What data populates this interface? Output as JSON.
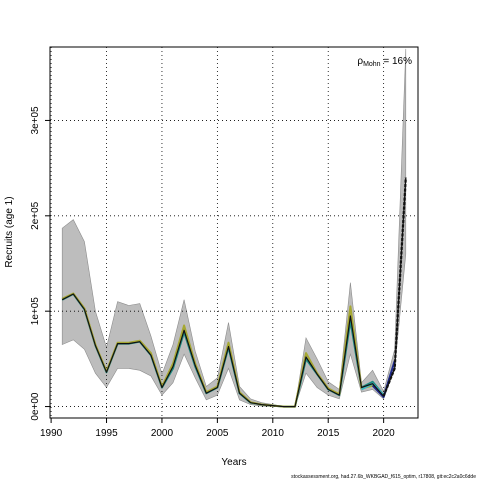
{
  "chart_data": {
    "type": "line",
    "xlabel": "Years",
    "ylabel": "Recruits (age 1)",
    "x_ticks": [
      1990,
      1995,
      2000,
      2005,
      2010,
      2015,
      2020
    ],
    "y_ticks": [
      0,
      100000,
      200000,
      300000
    ],
    "y_tick_labels": [
      "0e+00",
      "1e+05",
      "2e+05",
      "3e+05"
    ],
    "xlim": [
      1989.9,
      2023.1
    ],
    "ylim": [
      -12000,
      377000
    ],
    "grid": true,
    "annotation": "ρMohn = 16%",
    "annotation_main": "ρ",
    "annotation_sub": "Mohn",
    "annotation_tail": " = 16%",
    "footnote": "stockassessment.org, had.27.6b_WKBGAD_f615_optim, r17808, git:ec2c2a0c6dde",
    "band": {
      "years": [
        1991,
        1992,
        1993,
        1994,
        1995,
        1996,
        1997,
        1998,
        1999,
        2000,
        2001,
        2002,
        2003,
        2004,
        2005,
        2006,
        2007,
        2008,
        2009,
        2010,
        2011,
        2012,
        2013,
        2014,
        2015,
        2016,
        2017,
        2018,
        2019,
        2020,
        2021,
        2022
      ],
      "low": [
        65000,
        70000,
        60000,
        35000,
        20000,
        40000,
        40000,
        38000,
        32000,
        12000,
        25000,
        55000,
        30000,
        7000,
        12000,
        40000,
        7000,
        2000,
        500,
        0,
        0,
        0,
        35000,
        20000,
        12000,
        8000,
        55000,
        15000,
        18000,
        8000,
        40000,
        160000
      ],
      "high": [
        187000,
        196000,
        173000,
        100000,
        62000,
        110000,
        106000,
        108000,
        74000,
        34000,
        65000,
        112000,
        58000,
        21000,
        30000,
        88000,
        21000,
        8000,
        4000,
        2000,
        0,
        0,
        72000,
        50000,
        26000,
        18000,
        130000,
        25000,
        38000,
        16000,
        60000,
        375000
      ]
    },
    "series": [
      {
        "color": "#1d8a80",
        "years": [
          1991,
          1992,
          1993,
          1994,
          1995,
          1996,
          1997,
          1998,
          1999,
          2000,
          2001,
          2002,
          2003,
          2004,
          2005,
          2006,
          2007,
          2008,
          2009,
          2010,
          2011,
          2012,
          2013,
          2014,
          2015,
          2016,
          2017,
          2018,
          2019,
          2020
        ],
        "values": [
          112000,
          118000,
          102000,
          64000,
          36000,
          66000,
          66000,
          68000,
          54000,
          20000,
          40000,
          78000,
          42000,
          14000,
          20000,
          62000,
          14000,
          4000,
          2000,
          1000,
          0,
          0,
          50000,
          34000,
          18000,
          12000,
          90000,
          20000,
          26000,
          12000
        ]
      },
      {
        "color": "#a6a832",
        "years": [
          1991,
          1992,
          1993,
          1994,
          1995,
          1996,
          1997,
          1998,
          1999,
          2000,
          2001,
          2002,
          2003,
          2004,
          2005,
          2006,
          2007,
          2008,
          2009,
          2010,
          2011,
          2012,
          2013,
          2014,
          2015,
          2016,
          2017,
          2018,
          2019,
          2020
        ],
        "values": [
          113000,
          118500,
          103000,
          65000,
          37000,
          67000,
          67000,
          69000,
          56000,
          21000,
          45000,
          85000,
          45000,
          15000,
          21000,
          67000,
          15000,
          4500,
          2200,
          1000,
          0,
          0,
          56000,
          35000,
          19000,
          13000,
          105000,
          19000,
          22000,
          12000
        ]
      },
      {
        "color": "#3bb7c4",
        "years": [
          2018,
          2019,
          2020
        ],
        "values": [
          18000,
          24000,
          12000
        ]
      },
      {
        "color": "#1f2a8c",
        "years": [
          2019,
          2020,
          2021
        ],
        "values": [
          22000,
          10000,
          48000
        ]
      },
      {
        "color": "#111111",
        "years": [
          1991,
          1992,
          1993,
          1994,
          1995,
          1996,
          1997,
          1998,
          1999,
          2000,
          2001,
          2002,
          2003,
          2004,
          2005,
          2006,
          2007,
          2008,
          2009,
          2010,
          2011,
          2012,
          2013,
          2014,
          2015,
          2016,
          2017,
          2018,
          2019,
          2020,
          2021,
          2022
        ],
        "values": [
          112000,
          118000,
          102000,
          64000,
          36000,
          66000,
          66000,
          68000,
          54000,
          20000,
          42000,
          80000,
          43000,
          14000,
          20000,
          63000,
          14000,
          4000,
          2000,
          1000,
          0,
          0,
          52000,
          34000,
          18000,
          12000,
          95000,
          20000,
          24000,
          11000,
          40000,
          240000
        ]
      }
    ]
  }
}
